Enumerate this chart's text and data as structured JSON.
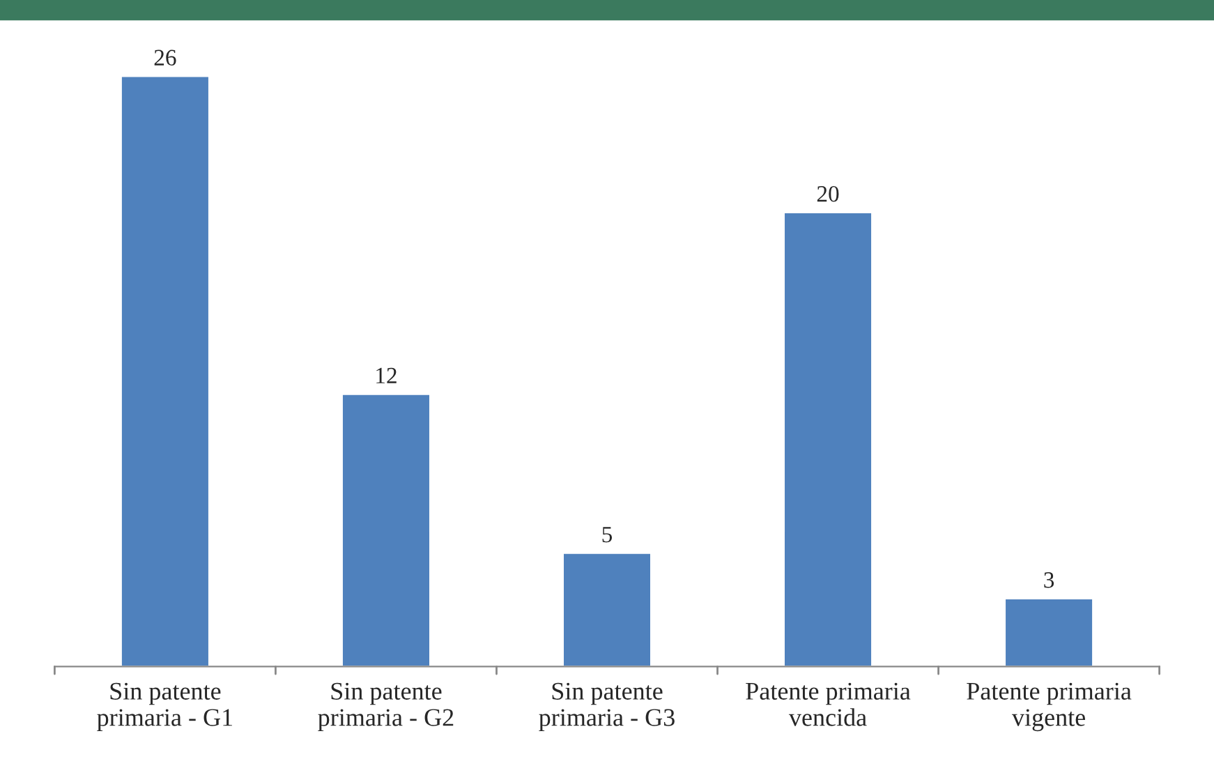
{
  "chart_data": {
    "type": "bar",
    "categories": [
      "Sin patente\nprimaria - G1",
      "Sin patente\nprimaria - G2",
      "Sin patente\nprimaria - G3",
      "Patente primaria\nvencida",
      "Patente primaria\nvigente"
    ],
    "values": [
      26,
      12,
      5,
      20,
      3
    ],
    "color": "#4f81bd",
    "data_labels": true,
    "grid": false,
    "legend": false
  }
}
